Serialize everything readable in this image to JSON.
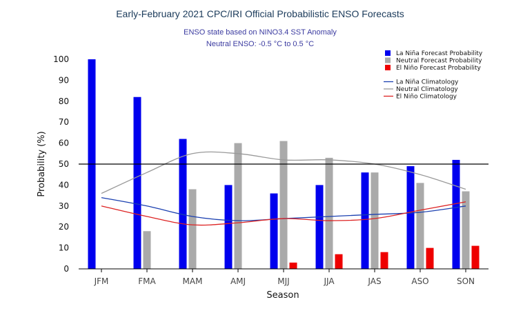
{
  "chart_data": {
    "type": "bar",
    "title": "Early-February 2021 CPC/IRI Official Probabilistic ENSO Forecasts",
    "subtitle_lines": [
      "ENSO state based on NINO3.4 SST Anomaly",
      "Neutral ENSO: -0.5 °C to 0.5 °C"
    ],
    "xlabel": "Season",
    "ylabel": "Probability (%)",
    "ylim": [
      0,
      100
    ],
    "yticks": [
      0,
      10,
      20,
      30,
      40,
      50,
      60,
      70,
      80,
      90,
      100
    ],
    "reference_line": 50,
    "categories": [
      "JFM",
      "FMA",
      "MAM",
      "AMJ",
      "MJJ",
      "JJA",
      "JAS",
      "ASO",
      "SON"
    ],
    "series": [
      {
        "name": "La Niña Forecast Probability",
        "color": "#0000ee",
        "kind": "bar",
        "values": [
          100,
          82,
          62,
          40,
          36,
          40,
          46,
          49,
          52
        ]
      },
      {
        "name": "Neutral Forecast Probability",
        "color": "#aaaaaa",
        "kind": "bar",
        "values": [
          0,
          18,
          38,
          60,
          61,
          53,
          46,
          41,
          37
        ]
      },
      {
        "name": "El Niño Forecast Probability",
        "color": "#ee0000",
        "kind": "bar",
        "values": [
          0,
          0,
          0,
          0,
          3,
          7,
          8,
          10,
          11
        ]
      },
      {
        "name": "La Niña Climatology",
        "color": "#1a3fb0",
        "kind": "line",
        "values": [
          34,
          30,
          25,
          23,
          24,
          25,
          26,
          27,
          30
        ]
      },
      {
        "name": "Neutral Climatology",
        "color": "#999999",
        "kind": "line",
        "values": [
          36,
          46,
          55,
          55,
          52,
          52,
          50,
          45,
          38
        ]
      },
      {
        "name": "El Niño Climatology",
        "color": "#dd2222",
        "kind": "line",
        "values": [
          30,
          25,
          21,
          22,
          24,
          23,
          24,
          28,
          32
        ]
      }
    ],
    "legend_position": "top-right",
    "grid": false
  }
}
